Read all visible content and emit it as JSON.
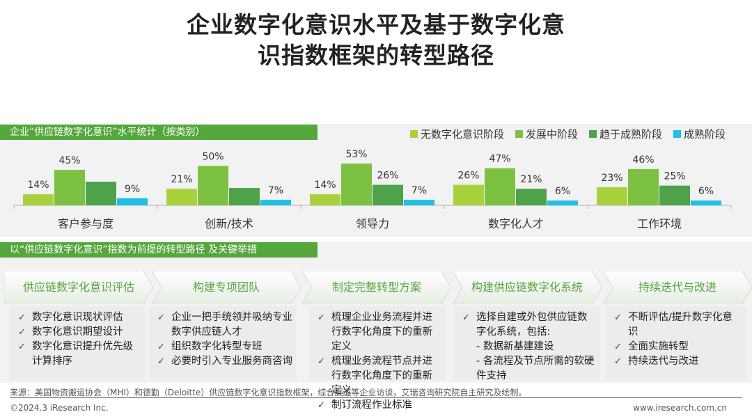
{
  "title": {
    "line1": "企业数字化意识水平及基于数字化意",
    "line2": "识指数框架的转型路径"
  },
  "section1": {
    "label": "企业“供应链数字化意识”水平统计（按类别）"
  },
  "section2": {
    "label": "以“供应链数字化意识”指数为前提的转型路径 及关键举措"
  },
  "colors": {
    "accent": "#54a73b",
    "band": "#f2f2f2",
    "box": "#ececec"
  },
  "chart_data": {
    "type": "bar",
    "categories": [
      "客户参与度",
      "创新/技术",
      "领导力",
      "数字化人才",
      "工作环境"
    ],
    "series": [
      {
        "name": "无数字化意识阶段",
        "color": "#a9d13b",
        "values": [
          14,
          21,
          14,
          26,
          23
        ]
      },
      {
        "name": "发展中阶段",
        "color": "#7cc142",
        "values": [
          45,
          50,
          53,
          47,
          46
        ]
      },
      {
        "name": "趋于成熟阶段",
        "color": "#4ea24a",
        "values": [
          30,
          22,
          26,
          21,
          25
        ]
      },
      {
        "name": "成熟阶段",
        "color": "#1ec0e8",
        "values": [
          9,
          7,
          7,
          6,
          6
        ]
      }
    ],
    "data_labels": [
      [
        "14%",
        "21%",
        "14%",
        "26%",
        "23%"
      ],
      [
        "45%",
        "50%",
        "53%",
        "47%",
        "46%"
      ],
      [
        "",
        "",
        "26%",
        "21%",
        "25%"
      ],
      [
        "9%",
        "7%",
        "7%",
        "6%",
        "6%"
      ]
    ],
    "ylim": [
      0,
      60
    ],
    "grid": false,
    "legend": "top-right"
  },
  "steps": [
    {
      "label": "供应链数字化意识评估"
    },
    {
      "label": "构建专项团队"
    },
    {
      "label": "制定完整转型方案"
    },
    {
      "label": "构建供应链数字化系统"
    },
    {
      "label": "持续迭代与改进"
    }
  ],
  "boxes": [
    {
      "items": [
        "数字化意识现状评估",
        "数字化意识期望设计",
        "数字化意识提升优先级计算排序"
      ]
    },
    {
      "items": [
        "企业一把手统领并吸纳专业数字供应链人才",
        "组织数字化转型专班",
        "必要时引入专业服务商咨询"
      ]
    },
    {
      "items": [
        "梳理企业业务流程并进行数字化角度下的重新定义",
        "梳理业务流程节点并进行数字化角度下的重新定义",
        "制订流程作业标准"
      ]
    },
    {
      "items": [
        "选择自建或外包供应链数字化系统，包括:"
      ],
      "subs": [
        "- 数据新基建建设",
        "- 各流程及节点所需的软硬件支持"
      ]
    },
    {
      "items": [
        "不断评估/提升数字化意识",
        "全面实施转型",
        "持续迭代与改进"
      ]
    }
  ],
  "footer": {
    "source": "来源：美国物资搬运协会（MHI）和德勤（Deloitte）供应链数字化意识指数框架，综合艉道等企业访谈，艾瑞咨询研究院自主研究及绘制。",
    "copyright": "©2024.3 iResearch Inc.",
    "website": "www.iresearch.com.cn"
  }
}
